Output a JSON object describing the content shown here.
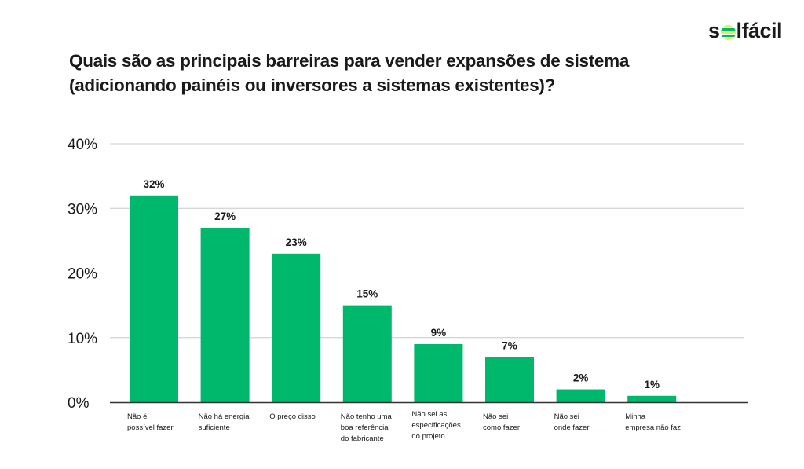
{
  "logo": {
    "text_before": "s",
    "text_after": "lfácil",
    "full": "solfácil"
  },
  "title": "Quais são as principais barreiras para vender expansões de sistema (adicionando painéis ou inversores a sistemas existentes)?",
  "colors": {
    "bar": "#00b86b",
    "grid": "#c8c8c8",
    "axis": "#333333"
  },
  "chart_data": {
    "type": "bar",
    "title": "Quais são as principais barreiras para vender expansões de sistema (adicionando painéis ou inversores a sistemas existentes)?",
    "categories": [
      [
        "Não é",
        "possível fazer"
      ],
      [
        "Não há energia",
        "suficiente"
      ],
      [
        "O preço disso"
      ],
      [
        "Não tenho uma",
        "boa referência",
        "do fabricante"
      ],
      [
        "Não sei as",
        "especificações",
        "do projeto"
      ],
      [
        "Não sei",
        "como fazer"
      ],
      [
        "Não sei",
        "onde fazer"
      ],
      [
        "Minha",
        "empresa não faz"
      ]
    ],
    "values": [
      32,
      27,
      23,
      15,
      9,
      7,
      2,
      1
    ],
    "data_labels": [
      "32%",
      "27%",
      "23%",
      "15%",
      "9%",
      "7%",
      "2%",
      "1%"
    ],
    "yticks": [
      "0%",
      "10%",
      "20%",
      "30%",
      "40%"
    ],
    "ytick_values": [
      0,
      10,
      20,
      30,
      40
    ],
    "ylim": [
      0,
      40
    ],
    "grid": true,
    "unit": "%"
  }
}
